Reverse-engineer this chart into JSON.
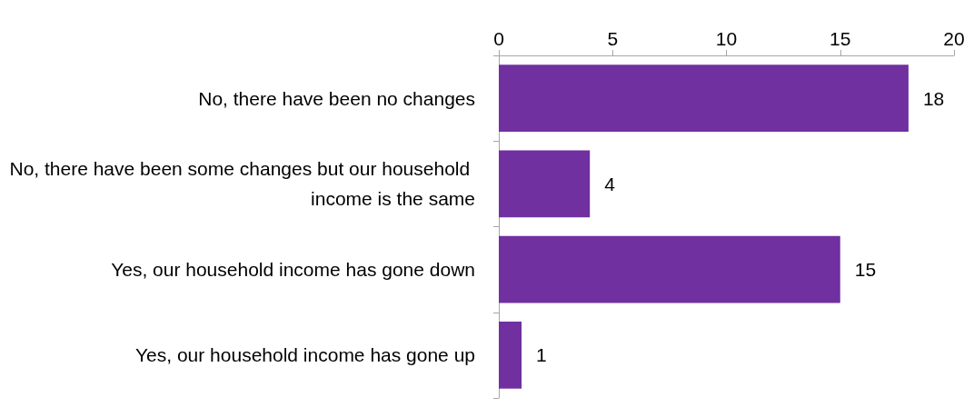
{
  "chart_data": {
    "type": "bar",
    "orientation": "horizontal",
    "categories": [
      "No, there have been no changes",
      "No, there have been some changes but our household income is the same",
      "Yes, our household income has gone down",
      "Yes, our household income has gone up"
    ],
    "values": [
      18,
      4,
      15,
      1
    ],
    "color": "#7030a0",
    "xlim": [
      0,
      20
    ],
    "xticks": [
      0,
      5,
      10,
      15,
      20
    ],
    "grid": false,
    "data_labels": true
  }
}
